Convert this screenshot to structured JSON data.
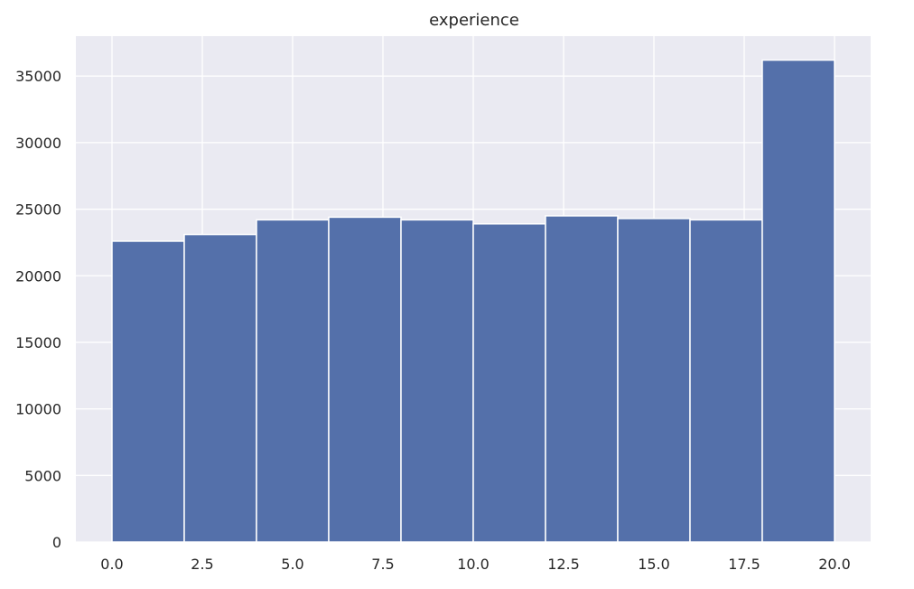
{
  "chart_data": {
    "type": "bar",
    "title": "experience",
    "xlabel": "",
    "ylabel": "",
    "grid": true,
    "bins": [
      {
        "start": 0.0,
        "end": 2.0,
        "value": 22600
      },
      {
        "start": 2.0,
        "end": 4.0,
        "value": 23100
      },
      {
        "start": 4.0,
        "end": 6.0,
        "value": 24200
      },
      {
        "start": 6.0,
        "end": 8.0,
        "value": 24400
      },
      {
        "start": 8.0,
        "end": 10.0,
        "value": 24200
      },
      {
        "start": 10.0,
        "end": 12.0,
        "value": 23900
      },
      {
        "start": 12.0,
        "end": 14.0,
        "value": 24500
      },
      {
        "start": 14.0,
        "end": 16.0,
        "value": 24300
      },
      {
        "start": 16.0,
        "end": 18.0,
        "value": 24200
      },
      {
        "start": 18.0,
        "end": 20.0,
        "value": 36200
      }
    ],
    "xlim": [
      -1.0,
      21.0
    ],
    "ylim": [
      0,
      38000
    ],
    "xticks": [
      0.0,
      2.5,
      5.0,
      7.5,
      10.0,
      12.5,
      15.0,
      17.5,
      20.0
    ],
    "xtick_labels": [
      "0.0",
      "2.5",
      "5.0",
      "7.5",
      "10.0",
      "12.5",
      "15.0",
      "17.5",
      "20.0"
    ],
    "yticks": [
      0,
      5000,
      10000,
      15000,
      20000,
      25000,
      30000,
      35000
    ],
    "ytick_labels": [
      "0",
      "5000",
      "10000",
      "15000",
      "20000",
      "25000",
      "30000",
      "35000"
    ],
    "colors": {
      "bar": "#5470AA",
      "bar_edge": "#FFFFFF",
      "axes_bg": "#EAEAF2",
      "grid": "#FFFFFF",
      "text": "#262626"
    }
  }
}
